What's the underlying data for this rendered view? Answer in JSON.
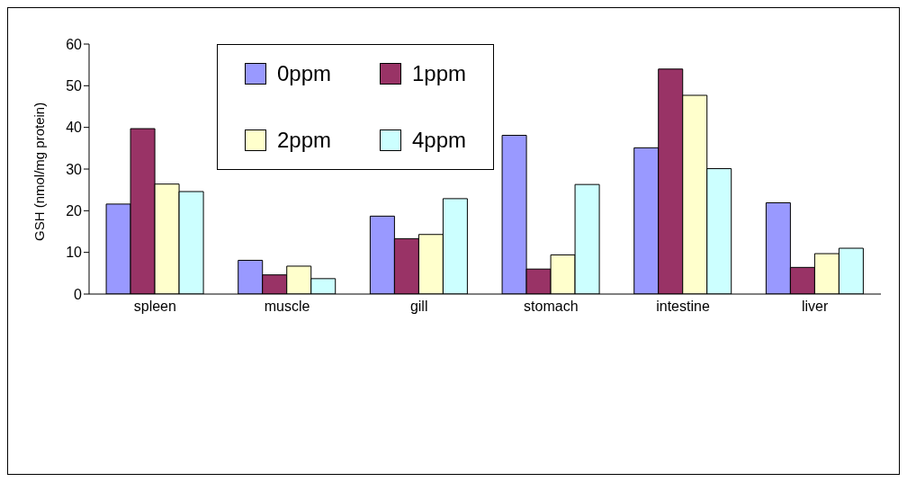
{
  "chart_data": {
    "type": "bar",
    "ylabel": "GSH (nmol/mg protein)",
    "categories": [
      "spleen",
      "muscle",
      "gill",
      "stomach",
      "intestine",
      "liver"
    ],
    "series": [
      {
        "name": "0ppm",
        "color": "#9999ff",
        "values": [
          21.6,
          8.1,
          18.7,
          38.1,
          35.1,
          21.9
        ]
      },
      {
        "name": "1ppm",
        "color": "#993366",
        "values": [
          39.7,
          4.6,
          13.3,
          6.0,
          54.0,
          6.4
        ]
      },
      {
        "name": "2ppm",
        "color": "#ffffcc",
        "values": [
          26.4,
          6.7,
          14.3,
          9.4,
          47.7,
          9.7
        ]
      },
      {
        "name": "4ppm",
        "color": "#ccffff",
        "values": [
          24.6,
          3.7,
          22.9,
          26.3,
          30.1,
          11.0
        ]
      }
    ],
    "ylim": [
      0,
      60
    ],
    "yticks": [
      0,
      10,
      20,
      30,
      40,
      50,
      60
    ],
    "grid": false,
    "legend": "top left"
  }
}
